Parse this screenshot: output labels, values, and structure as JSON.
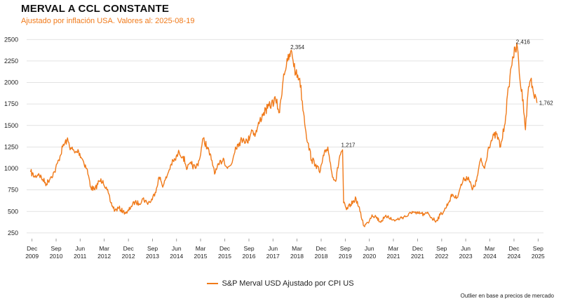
{
  "header": {
    "title": "MERVAL A CCL CONSTANTE",
    "subtitle": "Ajustado por inflación USA. Valores al: 2025-08-19"
  },
  "footer": {
    "source_note": "Outlier en base a precios de mercado"
  },
  "colors": {
    "series": "#f07a1a",
    "grid": "#d9d9d9",
    "text": "#222222"
  },
  "chart_data": {
    "type": "line",
    "title": "MERVAL A CCL CONSTANTE",
    "subtitle": "Ajustado por inflación USA. Valores al: 2025-08-19",
    "xlabel": "",
    "ylabel": "",
    "ylim": [
      200,
      2600
    ],
    "yticks": [
      250,
      500,
      750,
      1000,
      1250,
      1500,
      1750,
      2000,
      2250,
      2500
    ],
    "xlim": [
      "2009-10-01",
      "2025-11-01"
    ],
    "xticks": [
      {
        "date": "2009-12-01",
        "month": "Dec",
        "year": "2009"
      },
      {
        "date": "2010-09-01",
        "month": "Sep",
        "year": "2010"
      },
      {
        "date": "2011-06-01",
        "month": "Jun",
        "year": "2011"
      },
      {
        "date": "2012-03-01",
        "month": "Mar",
        "year": "2012"
      },
      {
        "date": "2012-12-01",
        "month": "Dec",
        "year": "2012"
      },
      {
        "date": "2013-09-01",
        "month": "Sep",
        "year": "2013"
      },
      {
        "date": "2014-06-01",
        "month": "Jun",
        "year": "2014"
      },
      {
        "date": "2015-03-01",
        "month": "Mar",
        "year": "2015"
      },
      {
        "date": "2015-12-01",
        "month": "Dec",
        "year": "2015"
      },
      {
        "date": "2016-09-01",
        "month": "Sep",
        "year": "2016"
      },
      {
        "date": "2017-06-01",
        "month": "Jun",
        "year": "2017"
      },
      {
        "date": "2018-03-01",
        "month": "Mar",
        "year": "2018"
      },
      {
        "date": "2018-12-01",
        "month": "Dec",
        "year": "2018"
      },
      {
        "date": "2019-09-01",
        "month": "Sep",
        "year": "2019"
      },
      {
        "date": "2020-06-01",
        "month": "Jun",
        "year": "2020"
      },
      {
        "date": "2021-03-01",
        "month": "Mar",
        "year": "2021"
      },
      {
        "date": "2021-12-01",
        "month": "Dec",
        "year": "2021"
      },
      {
        "date": "2022-09-01",
        "month": "Sep",
        "year": "2022"
      },
      {
        "date": "2023-06-01",
        "month": "Jun",
        "year": "2023"
      },
      {
        "date": "2024-03-01",
        "month": "Mar",
        "year": "2024"
      },
      {
        "date": "2024-12-01",
        "month": "Dec",
        "year": "2024"
      },
      {
        "date": "2025-09-01",
        "month": "Sep",
        "year": "2025"
      }
    ],
    "grid": true,
    "legend_position": "bottom-center",
    "series": [
      {
        "name": "S&P Merval USD Ajustado por CPI US",
        "color": "#f07a1a",
        "points": [
          [
            "2009-11-15",
            960
          ],
          [
            "2010-01-01",
            900
          ],
          [
            "2010-02-15",
            940
          ],
          [
            "2010-04-01",
            870
          ],
          [
            "2010-05-15",
            820
          ],
          [
            "2010-07-01",
            900
          ],
          [
            "2010-08-15",
            960
          ],
          [
            "2010-10-01",
            1100
          ],
          [
            "2010-11-15",
            1250
          ],
          [
            "2011-01-01",
            1330
          ],
          [
            "2011-02-15",
            1240
          ],
          [
            "2011-04-01",
            1180
          ],
          [
            "2011-05-15",
            1200
          ],
          [
            "2011-07-01",
            1100
          ],
          [
            "2011-08-15",
            1000
          ],
          [
            "2011-10-01",
            780
          ],
          [
            "2011-11-15",
            750
          ],
          [
            "2012-01-01",
            850
          ],
          [
            "2012-02-15",
            860
          ],
          [
            "2012-04-01",
            750
          ],
          [
            "2012-05-15",
            600
          ],
          [
            "2012-07-01",
            510
          ],
          [
            "2012-08-15",
            540
          ],
          [
            "2012-10-01",
            500
          ],
          [
            "2012-11-15",
            480
          ],
          [
            "2013-01-01",
            560
          ],
          [
            "2013-02-15",
            610
          ],
          [
            "2013-04-01",
            590
          ],
          [
            "2013-05-15",
            650
          ],
          [
            "2013-07-01",
            600
          ],
          [
            "2013-08-15",
            620
          ],
          [
            "2013-10-01",
            720
          ],
          [
            "2013-11-15",
            900
          ],
          [
            "2014-01-01",
            800
          ],
          [
            "2014-02-15",
            920
          ],
          [
            "2014-04-01",
            1050
          ],
          [
            "2014-05-15",
            1100
          ],
          [
            "2014-07-01",
            1190
          ],
          [
            "2014-08-15",
            1140
          ],
          [
            "2014-10-01",
            1000
          ],
          [
            "2014-11-15",
            1050
          ],
          [
            "2015-01-01",
            1000
          ],
          [
            "2015-02-15",
            1100
          ],
          [
            "2015-04-01",
            1350
          ],
          [
            "2015-05-15",
            1250
          ],
          [
            "2015-07-01",
            1100
          ],
          [
            "2015-08-15",
            950
          ],
          [
            "2015-10-01",
            1050
          ],
          [
            "2015-11-15",
            1120
          ],
          [
            "2016-01-01",
            1000
          ],
          [
            "2016-02-15",
            1050
          ],
          [
            "2016-04-01",
            1250
          ],
          [
            "2016-05-15",
            1300
          ],
          [
            "2016-07-01",
            1350
          ],
          [
            "2016-08-15",
            1300
          ],
          [
            "2016-10-01",
            1450
          ],
          [
            "2016-11-15",
            1400
          ],
          [
            "2017-01-01",
            1550
          ],
          [
            "2017-02-15",
            1650
          ],
          [
            "2017-04-01",
            1700
          ],
          [
            "2017-05-15",
            1750
          ],
          [
            "2017-07-01",
            1800
          ],
          [
            "2017-08-15",
            1650
          ],
          [
            "2017-10-01",
            2100
          ],
          [
            "2017-11-15",
            2250
          ],
          [
            "2018-01-01",
            2354
          ],
          [
            "2018-02-15",
            2100
          ],
          [
            "2018-04-01",
            2050
          ],
          [
            "2018-05-15",
            1650
          ],
          [
            "2018-07-01",
            1300
          ],
          [
            "2018-08-15",
            1100
          ],
          [
            "2018-10-01",
            1050
          ],
          [
            "2018-11-15",
            950
          ],
          [
            "2019-01-01",
            1150
          ],
          [
            "2019-02-15",
            1250
          ],
          [
            "2019-04-01",
            950
          ],
          [
            "2019-05-15",
            850
          ],
          [
            "2019-07-01",
            1150
          ],
          [
            "2019-08-01",
            1217
          ],
          [
            "2019-08-13",
            600
          ],
          [
            "2019-09-15",
            520
          ],
          [
            "2019-11-01",
            580
          ],
          [
            "2020-01-01",
            650
          ],
          [
            "2020-02-15",
            500
          ],
          [
            "2020-04-01",
            330
          ],
          [
            "2020-05-15",
            370
          ],
          [
            "2020-07-01",
            460
          ],
          [
            "2020-08-15",
            440
          ],
          [
            "2020-10-01",
            380
          ],
          [
            "2020-11-15",
            420
          ],
          [
            "2021-01-01",
            450
          ],
          [
            "2021-02-15",
            400
          ],
          [
            "2021-04-01",
            400
          ],
          [
            "2021-05-15",
            420
          ],
          [
            "2021-07-01",
            440
          ],
          [
            "2021-08-15",
            450
          ],
          [
            "2021-10-01",
            500
          ],
          [
            "2021-11-15",
            470
          ],
          [
            "2022-01-01",
            480
          ],
          [
            "2022-02-15",
            460
          ],
          [
            "2022-04-01",
            480
          ],
          [
            "2022-05-15",
            420
          ],
          [
            "2022-07-01",
            390
          ],
          [
            "2022-08-15",
            460
          ],
          [
            "2022-10-01",
            510
          ],
          [
            "2022-11-15",
            600
          ],
          [
            "2023-01-01",
            700
          ],
          [
            "2023-02-15",
            650
          ],
          [
            "2023-04-01",
            780
          ],
          [
            "2023-05-15",
            880
          ],
          [
            "2023-07-01",
            900
          ],
          [
            "2023-08-15",
            750
          ],
          [
            "2023-10-01",
            850
          ],
          [
            "2023-11-15",
            1100
          ],
          [
            "2024-01-01",
            1000
          ],
          [
            "2024-02-15",
            1250
          ],
          [
            "2024-04-01",
            1350
          ],
          [
            "2024-05-15",
            1400
          ],
          [
            "2024-07-01",
            1250
          ],
          [
            "2024-08-15",
            1500
          ],
          [
            "2024-10-01",
            1950
          ],
          [
            "2024-11-15",
            2300
          ],
          [
            "2025-01-08",
            2416
          ],
          [
            "2025-02-15",
            1950
          ],
          [
            "2025-03-15",
            1800
          ],
          [
            "2025-04-10",
            1450
          ],
          [
            "2025-05-15",
            1950
          ],
          [
            "2025-06-15",
            2050
          ],
          [
            "2025-07-15",
            1850
          ],
          [
            "2025-08-19",
            1762
          ]
        ]
      }
    ],
    "annotations": [
      {
        "date": "2018-01-01",
        "value": 2354,
        "text": "2,354"
      },
      {
        "date": "2019-08-01",
        "value": 1217,
        "text": "1,217"
      },
      {
        "date": "2025-01-08",
        "value": 2416,
        "text": "2,416"
      },
      {
        "date": "2025-08-19",
        "value": 1762,
        "text": "1,762"
      }
    ]
  }
}
